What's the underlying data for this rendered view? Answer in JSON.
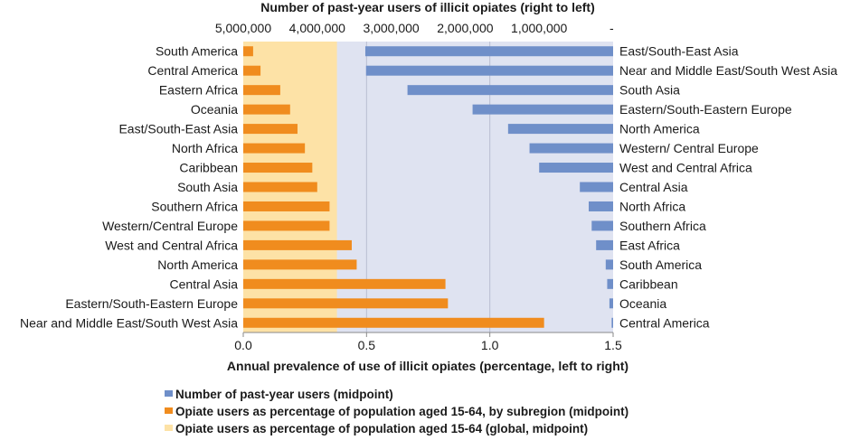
{
  "chart_data": {
    "type": "bar",
    "orientation": "horizontal",
    "top_axis": {
      "title": "Number of past-year users of illicit opiates (right to left)",
      "ticks": [
        {
          "value": 5000000,
          "label": "5,000,000"
        },
        {
          "value": 4000000,
          "label": "4,000,000"
        },
        {
          "value": 3000000,
          "label": "3,000,000"
        },
        {
          "value": 2000000,
          "label": "2,000,000"
        },
        {
          "value": 1000000,
          "label": "1,000,000"
        },
        {
          "value": 0,
          "label": "-"
        }
      ],
      "range": [
        0,
        5000000
      ],
      "direction": "right-to-left"
    },
    "bottom_axis": {
      "title": "Annual prevalence of use of illicit opiates (percentage, left to right)",
      "ticks": [
        {
          "value": 0,
          "label": "0.0"
        },
        {
          "value": 0.5,
          "label": "0.5"
        },
        {
          "value": 1.0,
          "label": "1.0"
        },
        {
          "value": 1.5,
          "label": "1.5"
        }
      ],
      "range": [
        0,
        1.5
      ],
      "direction": "left-to-right"
    },
    "global_band": {
      "name": "Opiate users as percentage of population aged 15-64 (global, midpoint)",
      "from": 0,
      "to": 0.38
    },
    "series": [
      {
        "name": "Number of past-year users (midpoint)",
        "color": "#6f8fc9",
        "labels": [
          "East/South-East Asia",
          "Near and Middle East/South West Asia",
          "South Asia",
          "Eastern/South-Eastern Europe",
          "North America",
          "Western/ Central Europe",
          "West and Central Africa",
          "Central Asia",
          "North Africa",
          "Southern Africa",
          "East Africa",
          "South America",
          "Caribbean",
          "Oceania",
          "Central America"
        ],
        "values": [
          3350000,
          3340000,
          2780000,
          1900000,
          1420000,
          1130000,
          1000000,
          450000,
          330000,
          290000,
          230000,
          100000,
          80000,
          50000,
          20000
        ]
      },
      {
        "name": "Opiate users as percentage of population aged 15-64, by subregion (midpoint)",
        "color": "#f08c1e",
        "labels": [
          "South America",
          "Central America",
          "Eastern Africa",
          "Oceania",
          "East/South-East Asia",
          "North Africa",
          "Caribbean",
          "South Asia",
          "Southern Africa",
          "Western/Central Europe",
          "West and Central Africa",
          "North America",
          "Central Asia",
          "Eastern/South-Eastern Europe",
          "Near and Middle East/South West Asia"
        ],
        "values": [
          0.04,
          0.07,
          0.15,
          0.19,
          0.22,
          0.25,
          0.28,
          0.3,
          0.35,
          0.35,
          0.44,
          0.46,
          0.82,
          0.83,
          1.22
        ]
      }
    ],
    "legend": {
      "position": "bottom",
      "items": [
        {
          "label": "Number of past-year users (midpoint)",
          "color": "#6f8fc9"
        },
        {
          "label": "Opiate users as percentage of population aged 15-64, by subregion (midpoint)",
          "color": "#f08c1e"
        },
        {
          "label": "Opiate users as percentage of population aged 15-64 (global, midpoint)",
          "color": "#fde2a6"
        }
      ]
    },
    "colors": {
      "plot_background": "#dfe3f1",
      "grid": "#b9bdd2",
      "axis": "#8a8a8a",
      "global_band": "#fde2a6"
    }
  }
}
